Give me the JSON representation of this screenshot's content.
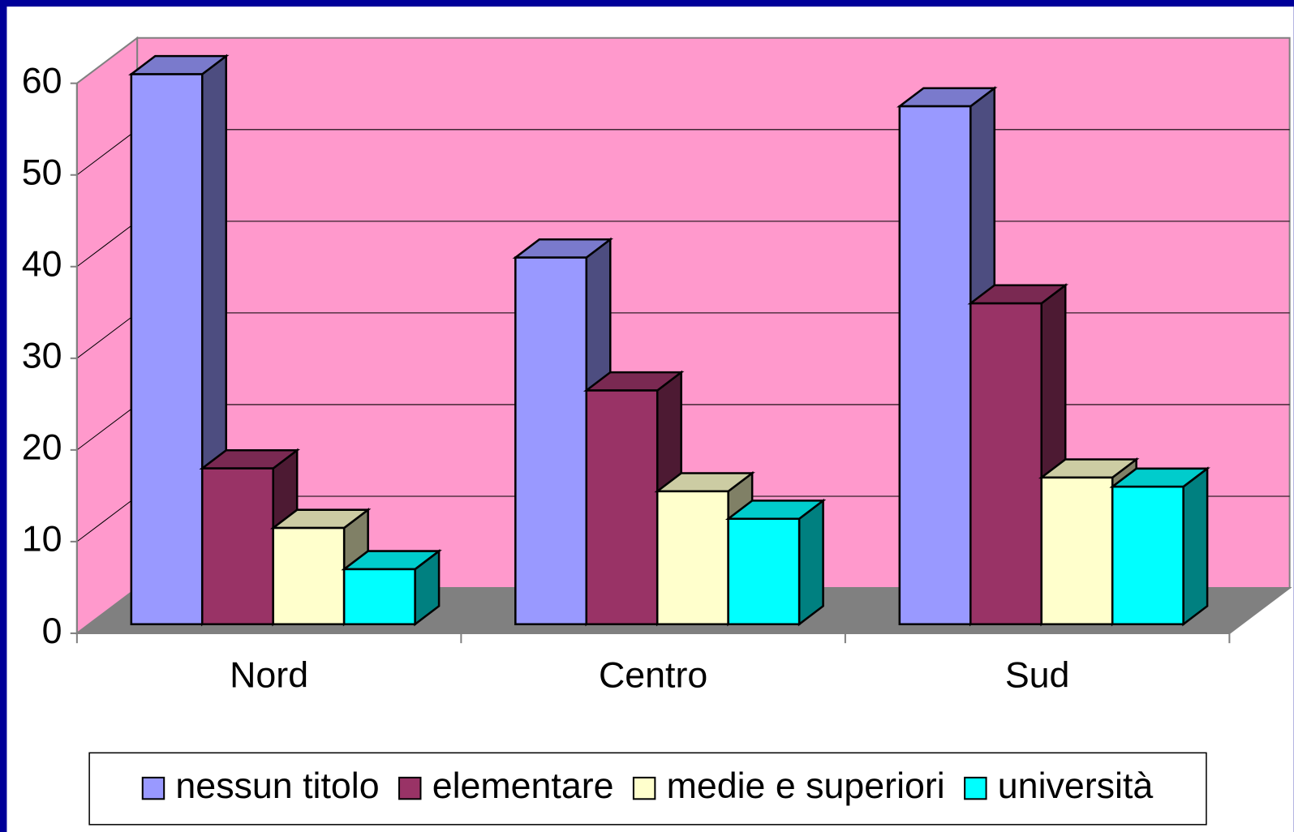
{
  "chart_data": {
    "type": "bar",
    "categories": [
      "Nord",
      "Centro",
      "Sud"
    ],
    "series": [
      {
        "name": "nessun titolo",
        "color": "#9999ff",
        "values": [
          60,
          40,
          56.5
        ]
      },
      {
        "name": "elementare",
        "color": "#993366",
        "values": [
          17,
          25.5,
          35
        ]
      },
      {
        "name": "medie e superiori",
        "color": "#ffffcc",
        "values": [
          10.5,
          14.5,
          16
        ]
      },
      {
        "name": "università",
        "color": "#00ffff",
        "values": [
          6,
          11.5,
          15
        ]
      }
    ],
    "ylim": [
      0,
      60
    ],
    "yticks": [
      0,
      10,
      20,
      30,
      40,
      50,
      60
    ],
    "grid": true,
    "legend": "bottom"
  }
}
